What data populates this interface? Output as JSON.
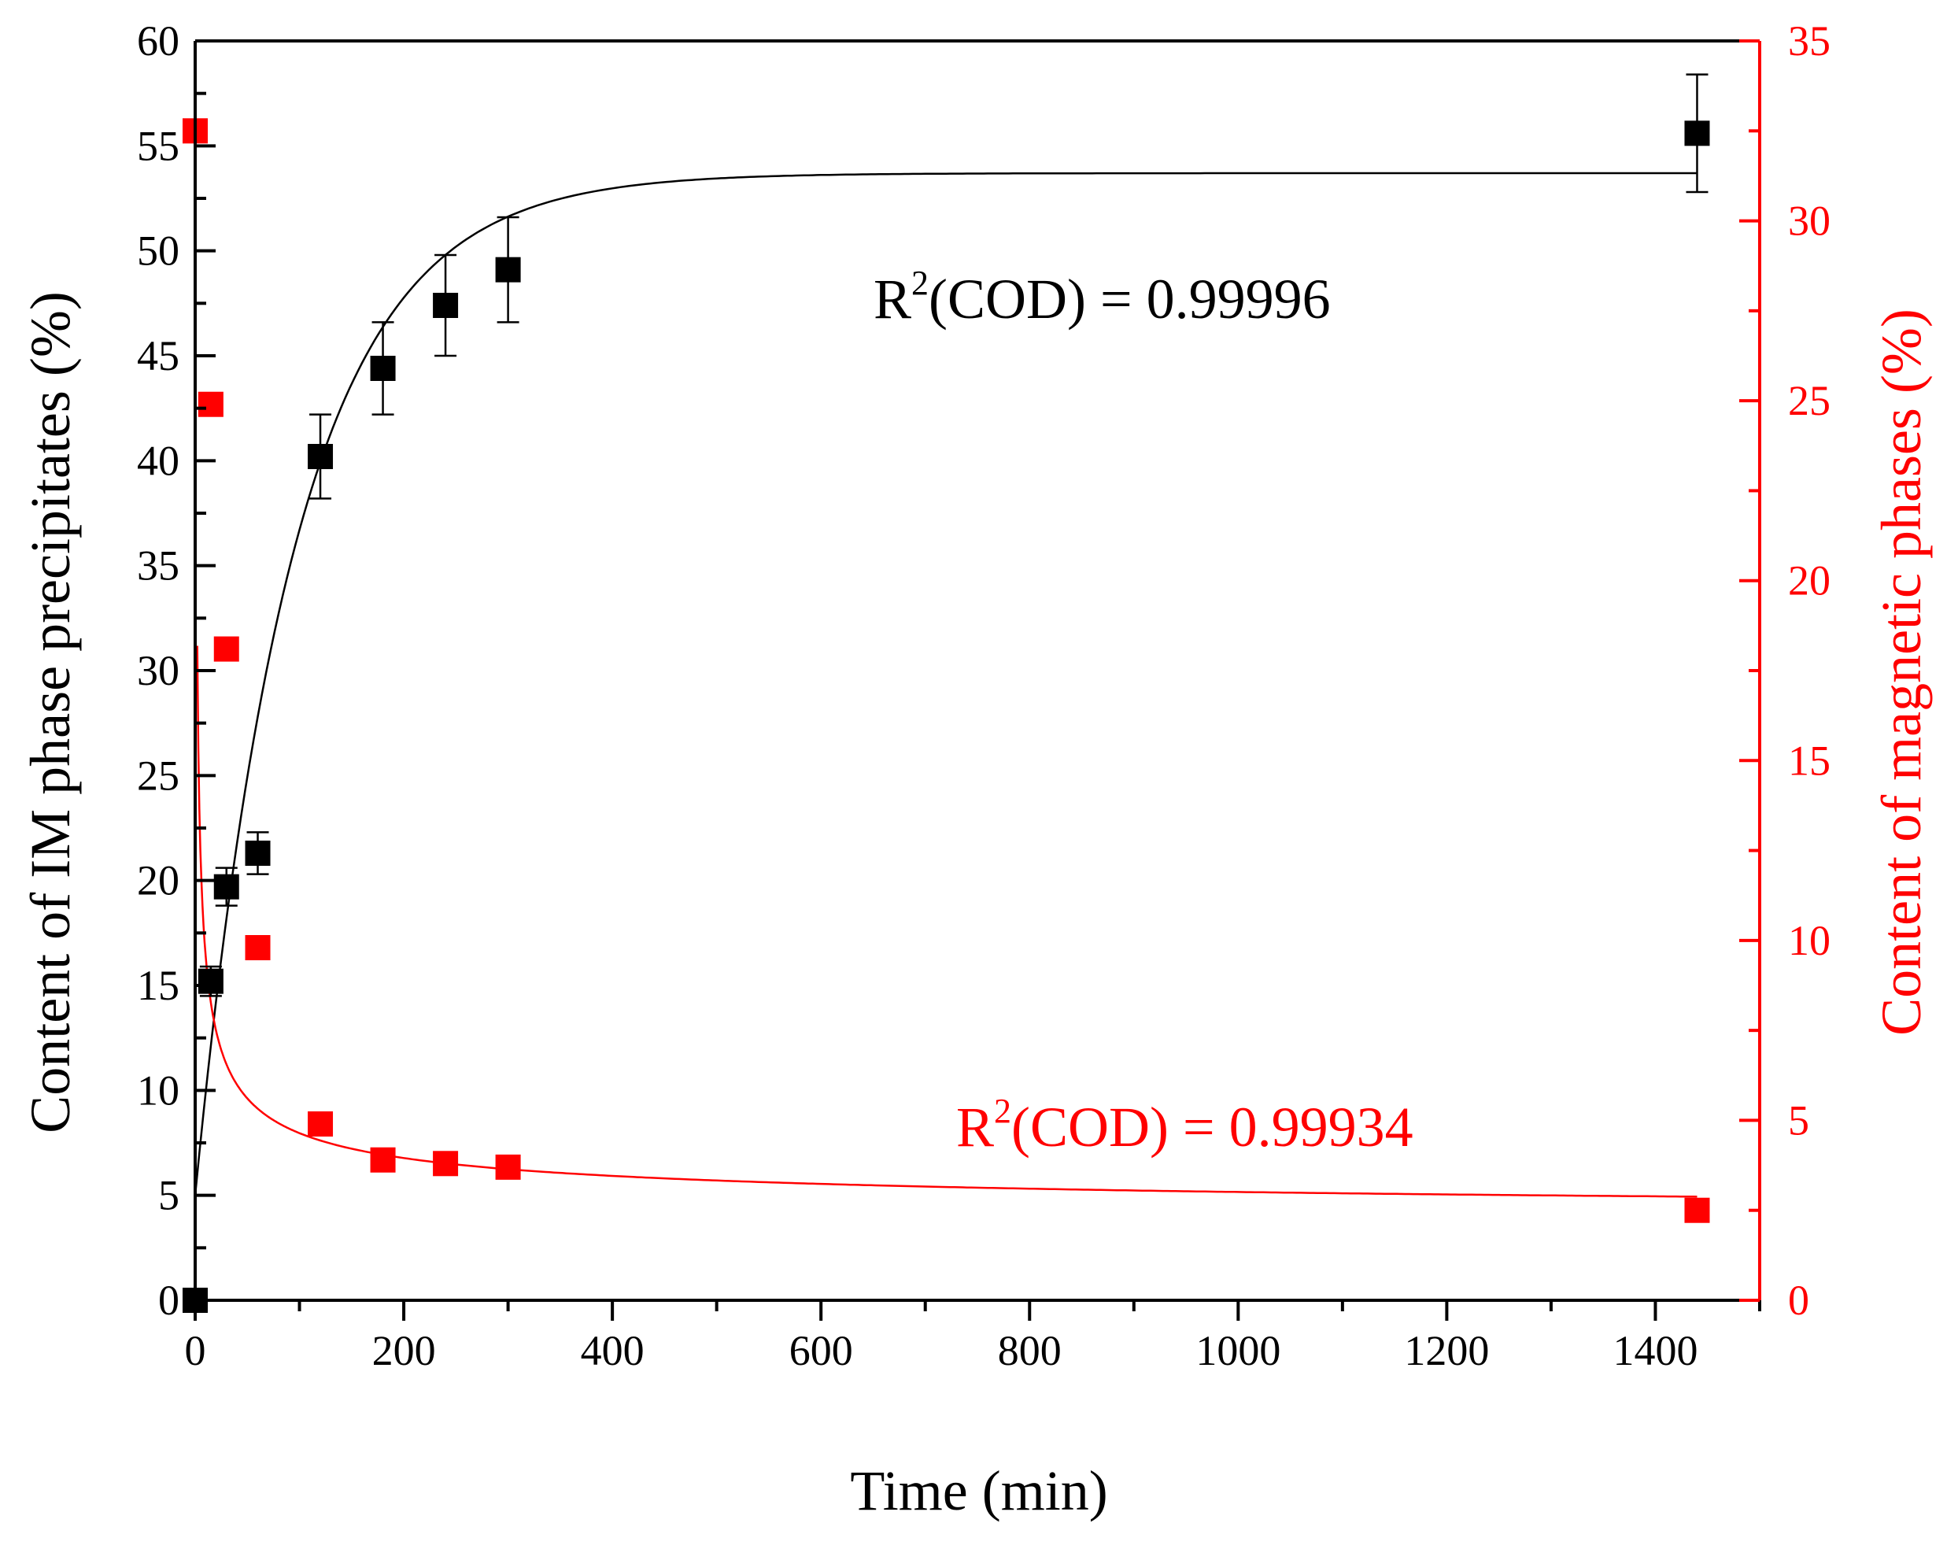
{
  "chart_data": {
    "type": "scatter",
    "title": "",
    "xlabel": "Time (min)",
    "ylabel_left": "Content of IM phase precipitates (%)",
    "ylabel_right": "Content of magnetic phases (%)",
    "xlim": [
      0,
      1500
    ],
    "ylim_left": [
      0,
      60
    ],
    "ylim_right": [
      0,
      35
    ],
    "x_ticks": [
      "0",
      "200",
      "400",
      "600",
      "800",
      "1000",
      "1200",
      "1400"
    ],
    "y_left_ticks": [
      "0",
      "5",
      "10",
      "15",
      "20",
      "25",
      "30",
      "35",
      "40",
      "45",
      "50",
      "55",
      "60"
    ],
    "y_right_ticks": [
      "0",
      "5",
      "10",
      "15",
      "20",
      "25",
      "30",
      "35"
    ],
    "colors": {
      "left_series": "#000000",
      "right_series": "#ff0000",
      "axis": "#000000",
      "right_axis": "#ff0000"
    },
    "series": [
      {
        "name": "IM phase precipitates",
        "axis": "left",
        "color": "#000000",
        "x": [
          0,
          15,
          30,
          60,
          120,
          180,
          240,
          300,
          1440
        ],
        "y": [
          0,
          15.2,
          19.7,
          21.3,
          40.2,
          44.4,
          47.4,
          49.1,
          55.6
        ],
        "yerr": [
          0,
          0.7,
          0.9,
          1.0,
          2.0,
          2.2,
          2.4,
          2.5,
          2.8
        ],
        "fit": {
          "model": "exponential saturation",
          "y0": 5,
          "ymax": 53.7,
          "tau": 95
        },
        "annotation": {
          "base": "R",
          "sup": "2",
          "rest": "(COD) = 0.99996"
        }
      },
      {
        "name": "magnetic phases",
        "axis": "right",
        "color": "#ff0000",
        "x": [
          0,
          15,
          30,
          60,
          120,
          180,
          240,
          300,
          1440
        ],
        "y": [
          32.5,
          24.9,
          18.1,
          9.8,
          4.9,
          3.9,
          3.8,
          3.7,
          2.5
        ],
        "fit": {
          "model": "power decay",
          "a": 22.3,
          "b": -0.48,
          "c": 2.2
        },
        "annotation": {
          "base": "R",
          "sup": "2",
          "rest": "(COD) = 0.99934"
        }
      }
    ]
  }
}
